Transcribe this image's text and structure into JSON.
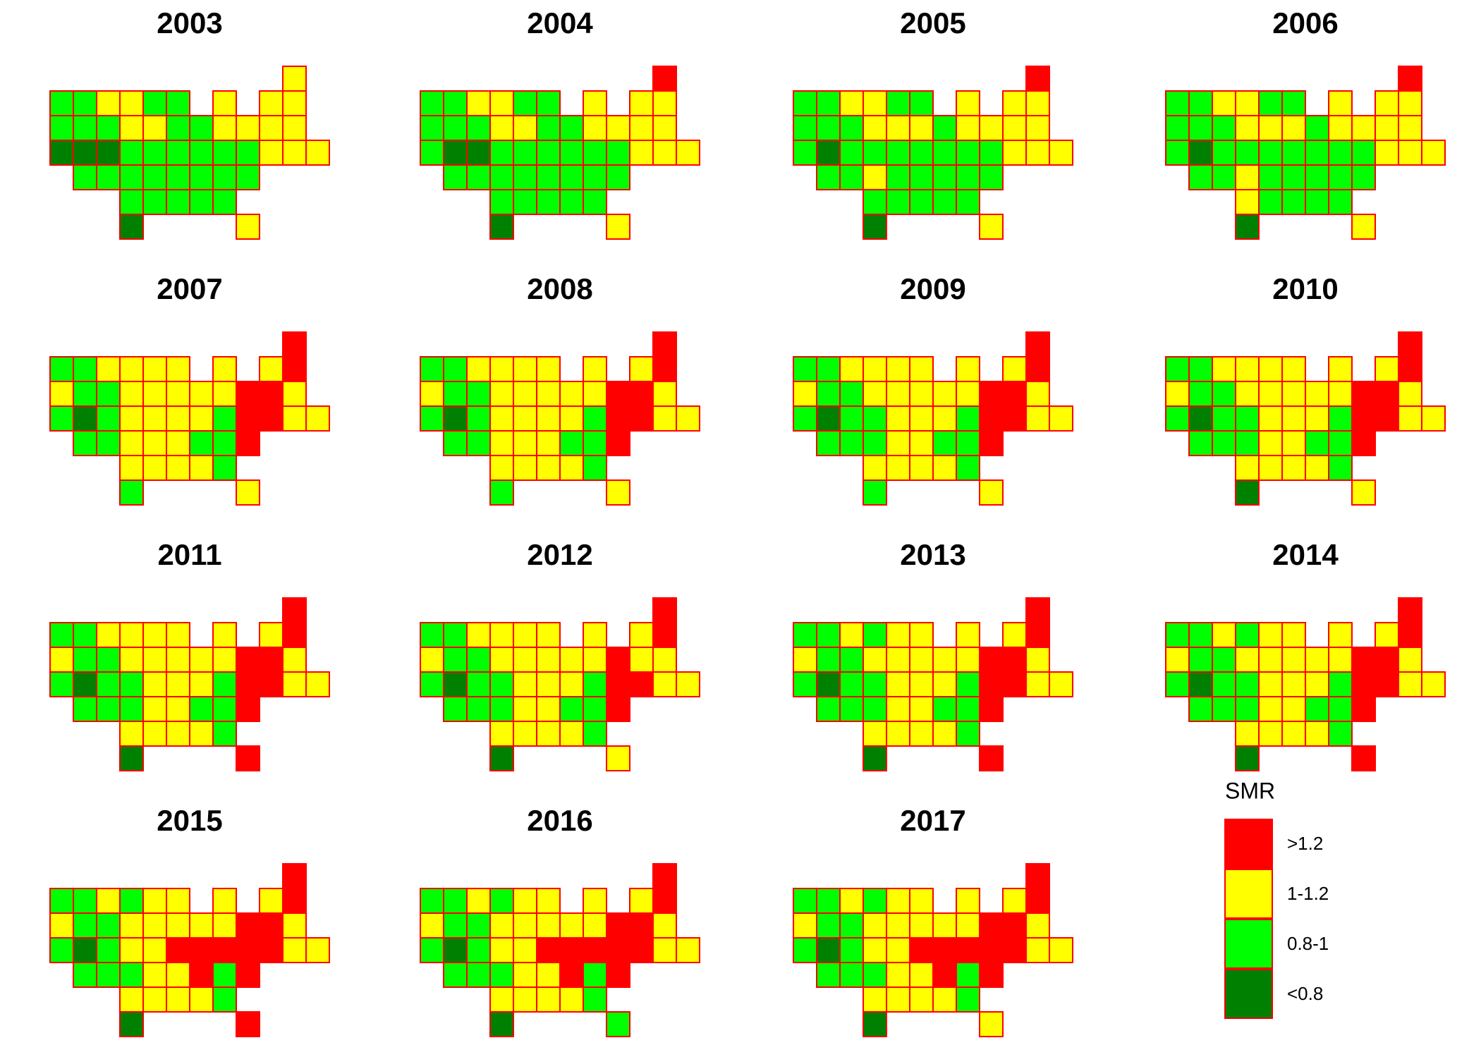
{
  "panels": [
    {
      "title": "2003",
      "classes": "122112211122211221111333222222111222222222222231"
    },
    {
      "title": "2004",
      "classes": "022112211122211221111233222222111222222222222231"
    },
    {
      "title": "2005",
      "classes": "022112211122211121111232222222111221222222222231"
    },
    {
      "title": "2006",
      "classes": "022112211122211121111232222222111221222221222231"
    },
    {
      "title": "2007",
      "classes": "022111111012211111001232111120011221112201111221"
    },
    {
      "title": "2008",
      "classes": "022111111012211111001232111120011221112201111221"
    },
    {
      "title": "2009",
      "classes": "022111111012211111001232211120011222112201111221"
    },
    {
      "title": "2010",
      "classes": "022111111012211111001232211120011222112201111231"
    },
    {
      "title": "2011",
      "classes": "022111111012211111001232211120011222112201111230"
    },
    {
      "title": "2012",
      "classes": "022111111012211111011232211120011222112201111231"
    },
    {
      "title": "2013",
      "classes": "022121111012211111001232211120011222112201111230"
    },
    {
      "title": "2014",
      "classes": "022121111012211111001232211120011222112201111230"
    },
    {
      "title": "2015",
      "classes": "022121111012211111001232110000011222110201111230"
    },
    {
      "title": "2016",
      "classes": "022121111012211111001232110000011222110201111232"
    },
    {
      "title": "2017",
      "classes": "022121111012211111001232110000011222110201111231"
    }
  ],
  "legend": {
    "title": "SMR",
    "items": [
      {
        "label": ">1.2",
        "color": "#ff0000"
      },
      {
        "label": "1-1.2",
        "color": "#ffff00"
      },
      {
        "label": "0.8-1",
        "color": "#00ff00"
      },
      {
        "label": "<0.8",
        "color": "#008000"
      }
    ]
  }
}
